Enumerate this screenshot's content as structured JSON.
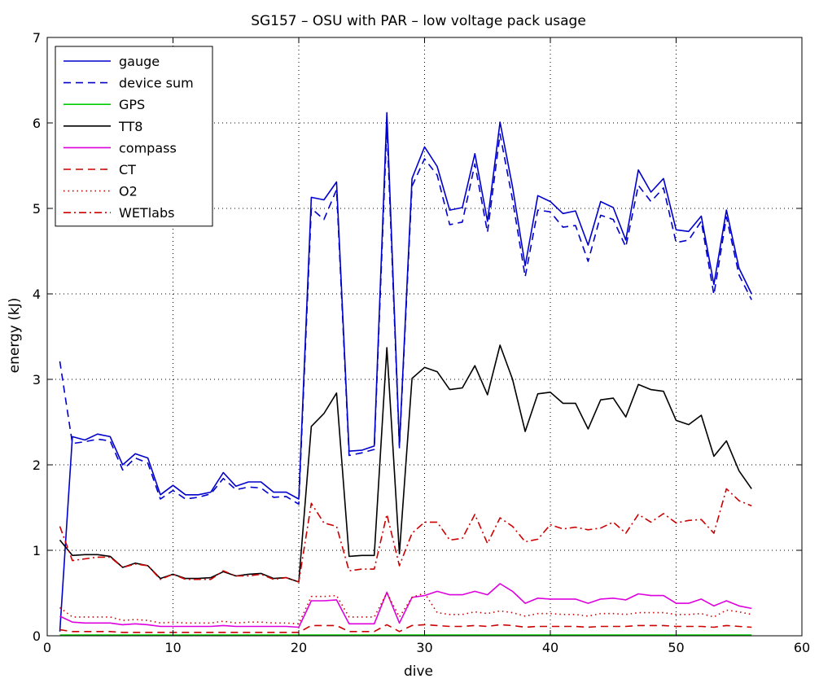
{
  "chart_data": {
    "type": "line",
    "title": "SG157 – OSU with PAR – low voltage pack usage",
    "xlabel": "dive",
    "ylabel": "energy (kJ)",
    "xlim": [
      0,
      60
    ],
    "ylim": [
      0,
      7
    ],
    "xticks": [
      0,
      10,
      20,
      30,
      40,
      50,
      60
    ],
    "yticks": [
      0,
      1,
      2,
      3,
      4,
      5,
      6,
      7
    ],
    "grid": true,
    "legend_position": "top-left",
    "x": [
      1,
      2,
      3,
      4,
      5,
      6,
      7,
      8,
      9,
      10,
      11,
      12,
      13,
      14,
      15,
      16,
      17,
      18,
      19,
      20,
      21,
      22,
      23,
      24,
      25,
      26,
      27,
      28,
      29,
      30,
      31,
      32,
      33,
      34,
      35,
      36,
      37,
      38,
      39,
      40,
      41,
      42,
      43,
      44,
      45,
      46,
      47,
      48,
      49,
      50,
      51,
      52,
      53,
      54,
      55,
      56
    ],
    "series": [
      {
        "name": "gauge",
        "color": "#0000cc",
        "dash": "solid",
        "values": [
          0.05,
          2.33,
          2.29,
          2.36,
          2.33,
          2.0,
          2.13,
          2.08,
          1.65,
          1.76,
          1.65,
          1.65,
          1.68,
          1.91,
          1.75,
          1.8,
          1.8,
          1.68,
          1.68,
          1.6,
          5.13,
          5.1,
          5.31,
          2.16,
          2.17,
          2.22,
          6.12,
          2.23,
          5.35,
          5.72,
          5.49,
          4.98,
          5.01,
          5.64,
          4.85,
          6.01,
          5.25,
          4.33,
          5.15,
          5.08,
          4.94,
          4.97,
          4.57,
          5.08,
          5.01,
          4.63,
          5.45,
          5.19,
          5.35,
          4.75,
          4.73,
          4.91,
          4.11,
          4.98,
          4.3,
          4.0
        ]
      },
      {
        "name": "device sum",
        "color": "#0000cc",
        "dash": "dashed",
        "values": [
          3.21,
          2.25,
          2.27,
          2.3,
          2.28,
          1.94,
          2.08,
          2.02,
          1.6,
          1.7,
          1.6,
          1.62,
          1.66,
          1.84,
          1.71,
          1.74,
          1.73,
          1.62,
          1.63,
          1.54,
          5.0,
          4.87,
          5.22,
          2.11,
          2.14,
          2.18,
          5.97,
          2.2,
          5.26,
          5.58,
          5.39,
          4.81,
          4.84,
          5.52,
          4.72,
          5.87,
          5.1,
          4.2,
          4.98,
          4.96,
          4.78,
          4.8,
          4.38,
          4.92,
          4.87,
          4.55,
          5.27,
          5.08,
          5.24,
          4.6,
          4.63,
          4.85,
          3.99,
          4.9,
          4.22,
          3.93
        ]
      },
      {
        "name": "GPS",
        "color": "#00cc00",
        "dash": "solid",
        "values": [
          0.01,
          0.01,
          0.01,
          0.01,
          0.01,
          0.01,
          0.01,
          0.01,
          0.01,
          0.01,
          0.01,
          0.01,
          0.01,
          0.01,
          0.01,
          0.01,
          0.01,
          0.01,
          0.01,
          0.01,
          0.01,
          0.01,
          0.01,
          0.01,
          0.01,
          0.01,
          0.01,
          0.01,
          0.01,
          0.01,
          0.01,
          0.01,
          0.01,
          0.01,
          0.01,
          0.01,
          0.01,
          0.01,
          0.01,
          0.01,
          0.01,
          0.01,
          0.01,
          0.01,
          0.01,
          0.01,
          0.01,
          0.01,
          0.01,
          0.01,
          0.01,
          0.01,
          0.01,
          0.01,
          0.01,
          0.01
        ]
      },
      {
        "name": "TT8",
        "color": "#000000",
        "dash": "solid",
        "values": [
          1.12,
          0.94,
          0.95,
          0.95,
          0.93,
          0.8,
          0.85,
          0.82,
          0.67,
          0.72,
          0.67,
          0.67,
          0.68,
          0.75,
          0.7,
          0.72,
          0.73,
          0.67,
          0.68,
          0.63,
          2.45,
          2.6,
          2.84,
          0.93,
          0.94,
          0.94,
          3.37,
          0.96,
          3.01,
          3.14,
          3.09,
          2.88,
          2.9,
          3.16,
          2.82,
          3.4,
          3.0,
          2.39,
          2.83,
          2.85,
          2.72,
          2.72,
          2.42,
          2.76,
          2.78,
          2.56,
          2.94,
          2.88,
          2.86,
          2.52,
          2.47,
          2.58,
          2.1,
          2.28,
          1.93,
          1.72
        ]
      },
      {
        "name": "compass",
        "color": "#dd00dd",
        "dash": "solid",
        "values": [
          0.23,
          0.16,
          0.15,
          0.15,
          0.15,
          0.13,
          0.14,
          0.13,
          0.11,
          0.11,
          0.11,
          0.11,
          0.11,
          0.12,
          0.11,
          0.11,
          0.11,
          0.11,
          0.11,
          0.1,
          0.41,
          0.41,
          0.42,
          0.14,
          0.14,
          0.14,
          0.51,
          0.15,
          0.45,
          0.47,
          0.52,
          0.48,
          0.48,
          0.52,
          0.48,
          0.61,
          0.52,
          0.38,
          0.44,
          0.43,
          0.43,
          0.43,
          0.38,
          0.43,
          0.44,
          0.42,
          0.49,
          0.47,
          0.47,
          0.38,
          0.38,
          0.43,
          0.35,
          0.41,
          0.35,
          0.32
        ]
      },
      {
        "name": "CT",
        "color": "#cc0000",
        "dash": "dashed",
        "values": [
          0.07,
          0.05,
          0.05,
          0.05,
          0.05,
          0.04,
          0.04,
          0.04,
          0.04,
          0.04,
          0.04,
          0.04,
          0.04,
          0.04,
          0.04,
          0.04,
          0.04,
          0.04,
          0.04,
          0.04,
          0.12,
          0.12,
          0.12,
          0.05,
          0.05,
          0.05,
          0.13,
          0.05,
          0.12,
          0.13,
          0.12,
          0.11,
          0.11,
          0.12,
          0.11,
          0.13,
          0.12,
          0.1,
          0.11,
          0.11,
          0.11,
          0.11,
          0.1,
          0.11,
          0.11,
          0.11,
          0.12,
          0.12,
          0.12,
          0.11,
          0.11,
          0.11,
          0.1,
          0.12,
          0.11,
          0.1
        ]
      },
      {
        "name": "O2",
        "color": "#cc0000",
        "dash": "dotted",
        "values": [
          0.33,
          0.22,
          0.22,
          0.22,
          0.22,
          0.18,
          0.19,
          0.18,
          0.15,
          0.16,
          0.15,
          0.15,
          0.15,
          0.17,
          0.15,
          0.16,
          0.16,
          0.15,
          0.15,
          0.14,
          0.46,
          0.46,
          0.47,
          0.22,
          0.22,
          0.22,
          0.5,
          0.22,
          0.45,
          0.5,
          0.27,
          0.25,
          0.25,
          0.28,
          0.26,
          0.29,
          0.27,
          0.23,
          0.26,
          0.26,
          0.25,
          0.25,
          0.23,
          0.26,
          0.26,
          0.25,
          0.27,
          0.27,
          0.27,
          0.25,
          0.25,
          0.26,
          0.22,
          0.3,
          0.28,
          0.25
        ]
      },
      {
        "name": "WETlabs",
        "color": "#cc0000",
        "dash": "dashdot",
        "values": [
          1.28,
          0.88,
          0.9,
          0.92,
          0.92,
          0.8,
          0.84,
          0.82,
          0.66,
          0.72,
          0.66,
          0.66,
          0.66,
          0.76,
          0.7,
          0.7,
          0.72,
          0.66,
          0.68,
          0.63,
          1.55,
          1.32,
          1.28,
          0.76,
          0.78,
          0.78,
          1.42,
          0.82,
          1.2,
          1.33,
          1.33,
          1.12,
          1.14,
          1.42,
          1.08,
          1.38,
          1.28,
          1.1,
          1.13,
          1.3,
          1.25,
          1.27,
          1.24,
          1.26,
          1.33,
          1.2,
          1.42,
          1.33,
          1.43,
          1.32,
          1.35,
          1.36,
          1.2,
          1.72,
          1.58,
          1.52
        ]
      }
    ]
  }
}
